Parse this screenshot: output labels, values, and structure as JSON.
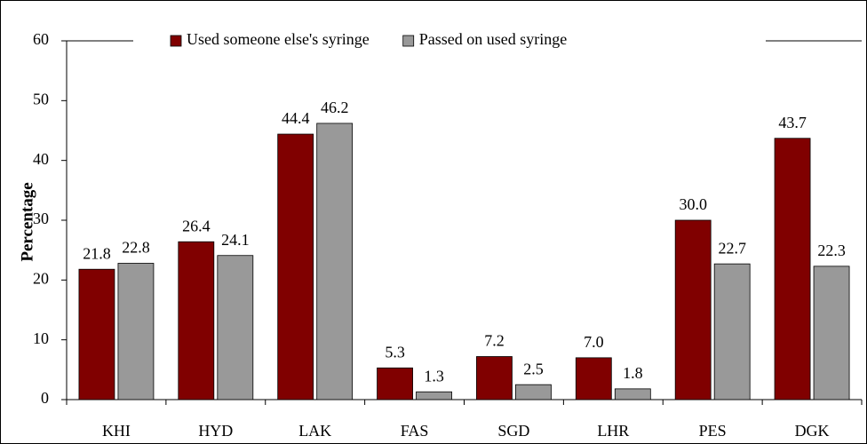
{
  "chart_data": {
    "type": "bar",
    "y_label": "Percentage",
    "categories": [
      "KHI",
      "HYD",
      "LAK",
      "FAS",
      "SGD",
      "LHR",
      "PES",
      "DGK"
    ],
    "series": [
      {
        "name": "Used someone else's syringe",
        "color": "#800000",
        "values": [
          21.8,
          26.4,
          44.4,
          5.3,
          7.2,
          7.0,
          30.0,
          43.7
        ],
        "value_labels": [
          "21.8",
          "26.4",
          "44.4",
          "5.3",
          "7.2",
          "7.0",
          "30.0",
          "43.7"
        ]
      },
      {
        "name": "Passed on used syringe",
        "color": "#999999",
        "values": [
          22.8,
          24.1,
          46.2,
          1.3,
          2.5,
          1.8,
          22.7,
          22.3
        ],
        "value_labels": [
          "22.8",
          "24.1",
          "46.2",
          "1.3",
          "2.5",
          "1.8",
          "22.7",
          "22.3"
        ]
      }
    ],
    "ylim": [
      0,
      60
    ],
    "yticks": [
      0,
      10,
      20,
      30,
      40,
      50,
      60
    ],
    "legend": "top"
  }
}
